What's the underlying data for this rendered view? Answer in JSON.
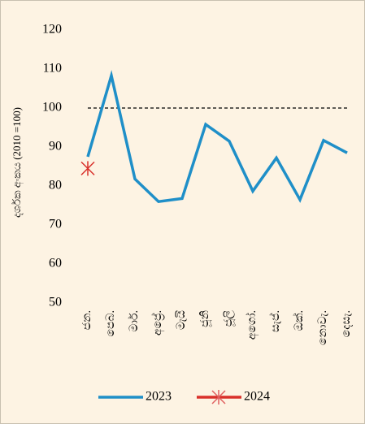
{
  "chart_data": {
    "type": "line",
    "y_label": "දර්ශක අංකය (2010 =100)",
    "categories": [
      "ජන.",
      "පෙබ.",
      "මාර්.",
      "අප්‍රේ.",
      "මැයි",
      "ජූනි",
      "ජූලි",
      "අගෝ.",
      "සැප්.",
      "ඔක්.",
      "නොවැ.",
      "දෙසැ."
    ],
    "series": [
      {
        "name": "2023",
        "color": "#1f8fc8",
        "values": [
          87.5,
          108.3,
          81.8,
          76,
          76.8,
          95.8,
          91.5,
          78.7,
          87.2,
          76.5,
          91.7,
          88.5
        ]
      },
      {
        "name": "2024",
        "color": "#d9302a",
        "marker": "star",
        "values": [
          84.5,
          null,
          null,
          null,
          null,
          null,
          null,
          null,
          null,
          null,
          null,
          null
        ]
      }
    ],
    "reference_line": 100,
    "ylim": [
      50,
      120
    ],
    "yticks": [
      50,
      60,
      70,
      80,
      90,
      100,
      110,
      120
    ],
    "legend": "bottom"
  }
}
